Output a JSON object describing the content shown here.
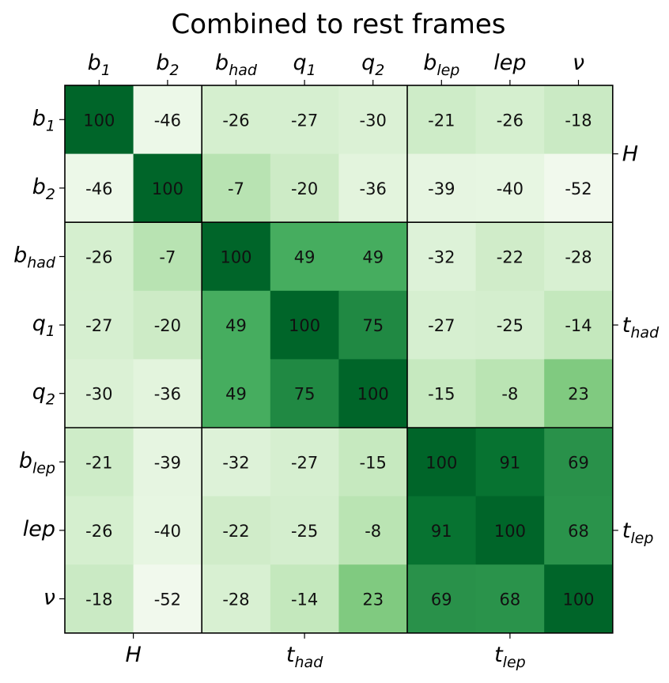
{
  "chart_data": {
    "type": "heatmap",
    "title": "Combined to rest frames",
    "labels": [
      {
        "base": "b",
        "sub": "1"
      },
      {
        "base": "b",
        "sub": "2"
      },
      {
        "base": "b",
        "sub": "had"
      },
      {
        "base": "q",
        "sub": "1"
      },
      {
        "base": "q",
        "sub": "2"
      },
      {
        "base": "b",
        "sub": "lep"
      },
      {
        "base": "lep",
        "sub": ""
      },
      {
        "base": "ν",
        "sub": ""
      }
    ],
    "groups": [
      {
        "base": "H",
        "sub": "",
        "start": 0,
        "end": 1
      },
      {
        "base": "t",
        "sub": "had",
        "start": 2,
        "end": 4
      },
      {
        "base": "t",
        "sub": "lep",
        "start": 5,
        "end": 7
      }
    ],
    "values": [
      [
        100,
        -46,
        -26,
        -27,
        -30,
        -21,
        -26,
        -18
      ],
      [
        -46,
        100,
        -7,
        -20,
        -36,
        -39,
        -40,
        -52
      ],
      [
        -26,
        -7,
        100,
        49,
        49,
        -32,
        -22,
        -28
      ],
      [
        -27,
        -20,
        49,
        100,
        75,
        -27,
        -25,
        -14
      ],
      [
        -30,
        -36,
        49,
        75,
        100,
        -15,
        -8,
        23
      ],
      [
        -21,
        -39,
        -32,
        -27,
        -15,
        100,
        91,
        69
      ],
      [
        -26,
        -40,
        -22,
        -25,
        -8,
        91,
        100,
        68
      ],
      [
        -18,
        -52,
        -28,
        -14,
        23,
        69,
        68,
        100
      ]
    ],
    "colormap": "Greens",
    "vmin": -60,
    "vmax": 100,
    "color_low": "#f7fcf5",
    "color_high": "#00441b"
  }
}
